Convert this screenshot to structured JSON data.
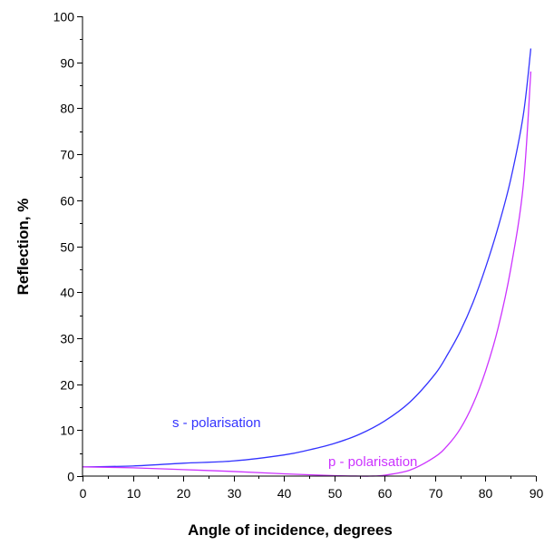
{
  "chart_data": {
    "type": "line",
    "title": "",
    "xlabel": "Angle of incidence, degrees",
    "ylabel": "Reflection, %",
    "xlim": [
      0,
      90
    ],
    "ylim": [
      0,
      100
    ],
    "x_ticks": [
      0,
      10,
      20,
      30,
      40,
      50,
      60,
      70,
      80,
      90
    ],
    "y_ticks": [
      0,
      10,
      20,
      30,
      40,
      50,
      60,
      70,
      80,
      90,
      100
    ],
    "grid": false,
    "legend": "none",
    "series": [
      {
        "name": "s - polarisation",
        "color": "#3333ff",
        "x": [
          0,
          10,
          20,
          30,
          40,
          45,
          50,
          55,
          60,
          65,
          70,
          72.5,
          75,
          77.5,
          80,
          82.5,
          85,
          87.5,
          89
        ],
        "y": [
          2.0,
          2.2,
          2.8,
          3.3,
          4.6,
          5.7,
          7.1,
          9.1,
          12.0,
          16.1,
          22.2,
          26.5,
          31.5,
          37.7,
          45.3,
          54.1,
          64.5,
          78.5,
          93.0
        ]
      },
      {
        "name": "p - polarisation",
        "color": "#cc33ff",
        "x": [
          0,
          10,
          20,
          30,
          40,
          50,
          55,
          57,
          60,
          65,
          70,
          72.5,
          75,
          77.5,
          80,
          82.5,
          85,
          87.5,
          89
        ],
        "y": [
          2.0,
          1.8,
          1.4,
          1.0,
          0.5,
          0.1,
          0.0,
          0.0,
          0.2,
          1.3,
          4.2,
          6.7,
          10.3,
          15.6,
          22.8,
          32.2,
          45.0,
          63.2,
          88.0
        ]
      }
    ]
  }
}
